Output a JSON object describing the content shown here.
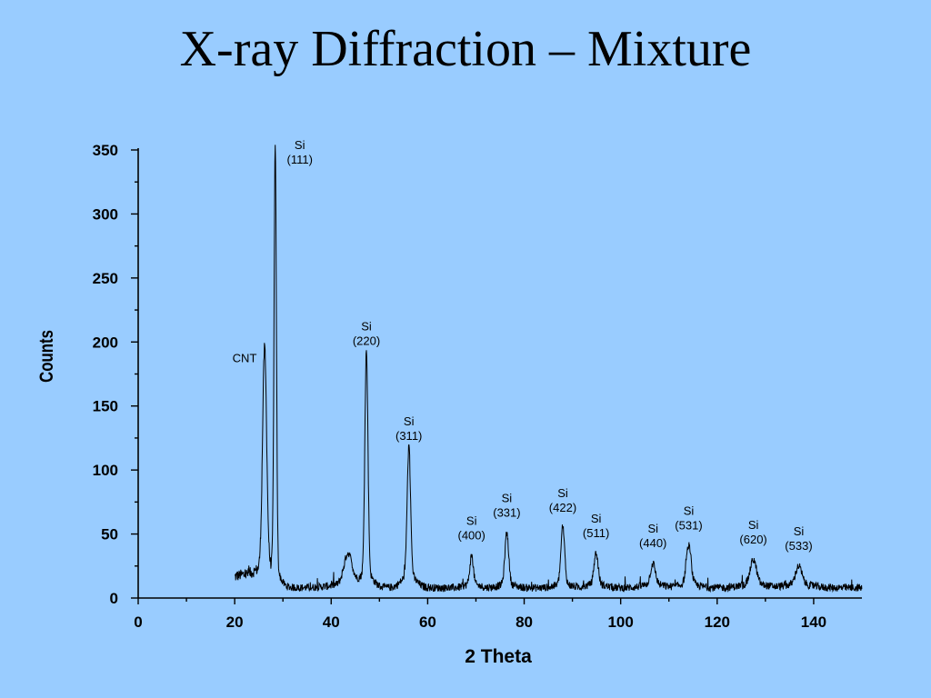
{
  "slide": {
    "title": "X-ray Diffraction – Mixture"
  },
  "colors": {
    "background": "#99ccff",
    "trace": "#000000",
    "axis": "#000000"
  },
  "chart_data": {
    "type": "line",
    "xlabel": "2 Theta",
    "ylabel": "Counts",
    "xlim": [
      0,
      150
    ],
    "ylim": [
      0,
      350
    ],
    "x_ticks": [
      0,
      20,
      40,
      60,
      80,
      100,
      120,
      140
    ],
    "y_ticks": [
      0,
      50,
      100,
      150,
      200,
      250,
      300,
      350
    ],
    "grid": false,
    "legend": "none",
    "x_range_data": [
      20,
      150
    ],
    "background_counts": 8,
    "peaks": [
      {
        "x": 26.2,
        "y": 180,
        "width": 0.6,
        "label": [
          "CNT"
        ]
      },
      {
        "x": 28.4,
        "y": 335,
        "width": 0.35,
        "label": [
          "Si",
          "(111)"
        ]
      },
      {
        "x": 43.5,
        "y": 32,
        "width": 1.2,
        "label": null
      },
      {
        "x": 47.3,
        "y": 182,
        "width": 0.45,
        "label": [
          "Si",
          "(220)"
        ]
      },
      {
        "x": 56.1,
        "y": 108,
        "width": 0.5,
        "label": [
          "Si",
          "(311)"
        ]
      },
      {
        "x": 69.1,
        "y": 30,
        "width": 0.5,
        "label": [
          "Si",
          "(400)"
        ]
      },
      {
        "x": 76.4,
        "y": 48,
        "width": 0.55,
        "label": [
          "Si",
          "(331)"
        ]
      },
      {
        "x": 88.0,
        "y": 52,
        "width": 0.55,
        "label": [
          "Si",
          "(422)"
        ]
      },
      {
        "x": 94.9,
        "y": 32,
        "width": 0.6,
        "label": [
          "Si",
          "(511)"
        ]
      },
      {
        "x": 106.7,
        "y": 24,
        "width": 0.7,
        "label": [
          "Si",
          "(440)"
        ]
      },
      {
        "x": 114.1,
        "y": 38,
        "width": 0.7,
        "label": [
          "Si",
          "(531)"
        ]
      },
      {
        "x": 127.5,
        "y": 27,
        "width": 0.9,
        "label": [
          "Si",
          "(620)"
        ]
      },
      {
        "x": 136.9,
        "y": 22,
        "width": 0.9,
        "label": [
          "Si",
          "(533)"
        ]
      }
    ]
  }
}
